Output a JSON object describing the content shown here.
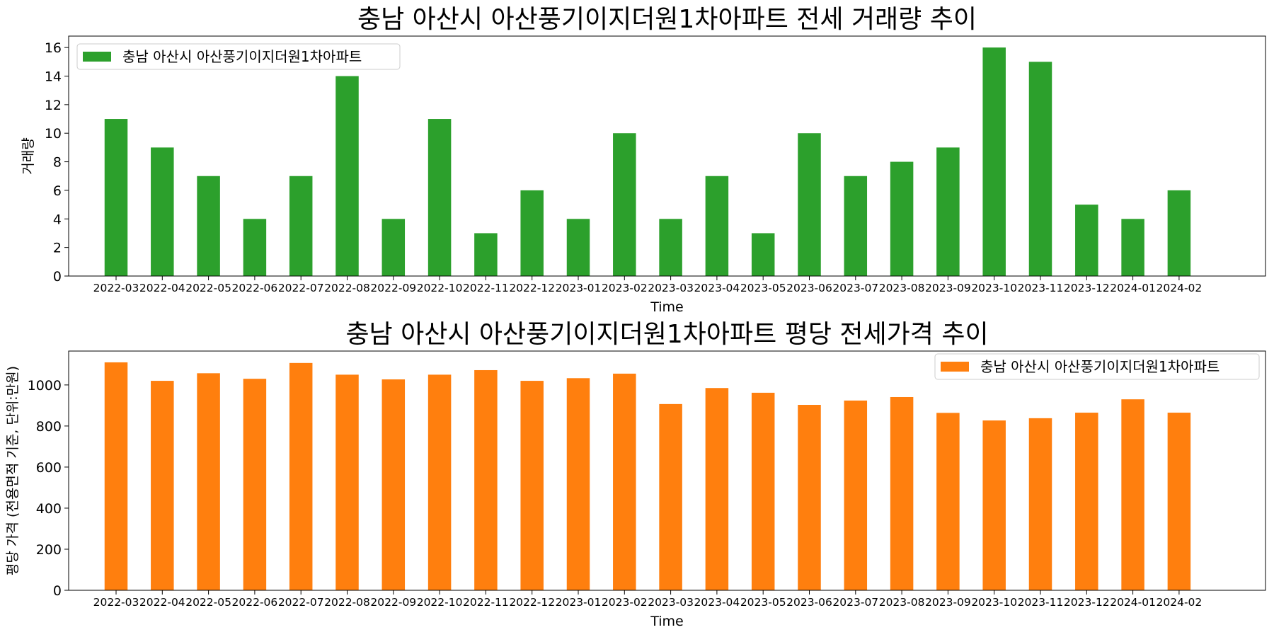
{
  "chart_data": [
    {
      "type": "bar",
      "title": "충남 아산시 아산풍기이지더원1차아파트 전세 거래량 추이",
      "xlabel": "Time",
      "ylabel": "거래량",
      "ylim": [
        0,
        16.8
      ],
      "yticks": [
        0,
        2,
        4,
        6,
        8,
        10,
        12,
        14,
        16
      ],
      "grid": false,
      "legend_position": "top-left",
      "categories": [
        "2022-03",
        "2022-04",
        "2022-05",
        "2022-06",
        "2022-07",
        "2022-08",
        "2022-09",
        "2022-10",
        "2022-11",
        "2022-12",
        "2023-01",
        "2023-02",
        "2023-03",
        "2023-04",
        "2023-05",
        "2023-06",
        "2023-07",
        "2023-08",
        "2023-09",
        "2023-10",
        "2023-11",
        "2023-12",
        "2024-01",
        "2024-02"
      ],
      "series": [
        {
          "name": "충남 아산시 아산풍기이지더원1차아파트",
          "color": "#2ca02c",
          "values": [
            11,
            9,
            7,
            4,
            7,
            14,
            4,
            11,
            3,
            6,
            4,
            10,
            4,
            7,
            3,
            10,
            7,
            8,
            9,
            16,
            15,
            5,
            4,
            6
          ]
        }
      ]
    },
    {
      "type": "bar",
      "title": "충남 아산시 아산풍기이지더원1차아파트 평당 전세가격 추이",
      "xlabel": "Time",
      "ylabel": "평당 가격 (전용면적 기준, 단위:만원)",
      "ylim": [
        0,
        1165
      ],
      "yticks": [
        0,
        200,
        400,
        600,
        800,
        1000
      ],
      "grid": false,
      "legend_position": "top-right",
      "categories": [
        "2022-03",
        "2022-04",
        "2022-05",
        "2022-06",
        "2022-07",
        "2022-08",
        "2022-09",
        "2022-10",
        "2022-11",
        "2022-12",
        "2023-01",
        "2023-02",
        "2023-03",
        "2023-04",
        "2023-05",
        "2023-06",
        "2023-07",
        "2023-08",
        "2023-09",
        "2023-10",
        "2023-11",
        "2023-12",
        "2024-01",
        "2024-02"
      ],
      "series": [
        {
          "name": "충남 아산시 아산풍기이지더원1차아파트",
          "color": "#ff7f0e",
          "values": [
            1110,
            1020,
            1057,
            1030,
            1107,
            1050,
            1027,
            1050,
            1072,
            1020,
            1033,
            1055,
            907,
            985,
            962,
            903,
            924,
            941,
            864,
            827,
            838,
            865,
            930,
            865
          ]
        }
      ]
    }
  ]
}
